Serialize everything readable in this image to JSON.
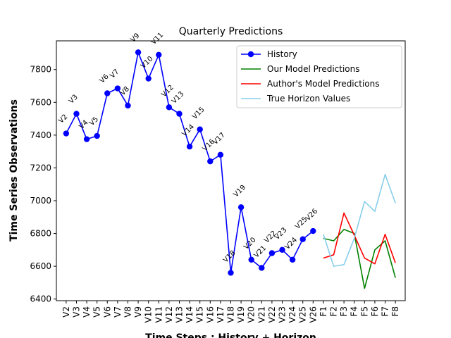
{
  "chart_data": {
    "type": "line",
    "title": "Quarterly Predictions",
    "xlabel": "Time Steps : History + Horizon",
    "ylabel": "Time Series Observations",
    "ylim": [
      6390,
      7975
    ],
    "yticks": [
      6400,
      6600,
      6800,
      7000,
      7200,
      7400,
      7600,
      7800
    ],
    "categories": [
      "V2",
      "V3",
      "V4",
      "V5",
      "V6",
      "V7",
      "V8",
      "V9",
      "V10",
      "V11",
      "V12",
      "V13",
      "V14",
      "V15",
      "V16",
      "V17",
      "V18",
      "V19",
      "V20",
      "V21",
      "V22",
      "V23",
      "V24",
      "V25",
      "V26",
      "F1",
      "F2",
      "F3",
      "F4",
      "F5",
      "F6",
      "F7",
      "F8"
    ],
    "legend_position": "top-right",
    "grid": false,
    "series": [
      {
        "name": "History",
        "color": "#0000ff",
        "marker": "circle",
        "point_labels": true,
        "x": [
          "V2",
          "V3",
          "V4",
          "V5",
          "V6",
          "V7",
          "V8",
          "V9",
          "V10",
          "V11",
          "V12",
          "V13",
          "V14",
          "V15",
          "V16",
          "V17",
          "V18",
          "V19",
          "V20",
          "V21",
          "V22",
          "V23",
          "V24",
          "V25",
          "V26"
        ],
        "values": [
          7410,
          7530,
          7375,
          7395,
          7655,
          7685,
          7580,
          7905,
          7745,
          7890,
          7570,
          7530,
          7330,
          7435,
          7240,
          7280,
          6560,
          6960,
          6640,
          6590,
          6680,
          6700,
          6640,
          6765,
          6815
        ]
      },
      {
        "name": "Our Model Predictions",
        "color": "#008000",
        "x": [
          "F1",
          "F2",
          "F3",
          "F4",
          "F5",
          "F6",
          "F7",
          "F8"
        ],
        "values": [
          6770,
          6755,
          6825,
          6800,
          6465,
          6700,
          6755,
          6530
        ]
      },
      {
        "name": "Author's Model Predictions",
        "color": "#ff0000",
        "x": [
          "F1",
          "F2",
          "F3",
          "F4",
          "F5",
          "F6",
          "F7",
          "F8"
        ],
        "values": [
          6650,
          6670,
          6925,
          6790,
          6650,
          6615,
          6795,
          6620
        ]
      },
      {
        "name": "True Horizon Values",
        "color": "#87ceeb",
        "x": [
          "F1",
          "F2",
          "F3",
          "F4",
          "F5",
          "F6",
          "F7",
          "F8"
        ],
        "values": [
          6795,
          6600,
          6610,
          6770,
          6995,
          6935,
          7160,
          6985
        ]
      }
    ]
  }
}
